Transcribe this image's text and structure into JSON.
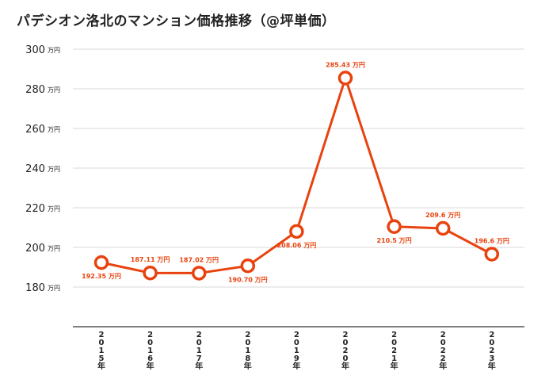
{
  "chart_data": {
    "type": "line",
    "title": "パデシオン洛北のマンション価格推移（@坪単価）",
    "y_unit": "万円",
    "ylim": [
      160,
      300
    ],
    "yticks": [
      180,
      200,
      220,
      240,
      260,
      280,
      300
    ],
    "categories": [
      "2015年",
      "2016年",
      "2017年",
      "2018年",
      "2019年",
      "2020年",
      "2021年",
      "2022年",
      "2023年"
    ],
    "values": [
      192.35,
      187.11,
      187.02,
      190.7,
      208.06,
      285.43,
      210.5,
      209.6,
      196.6
    ],
    "data_labels": [
      "192.35 万円",
      "187.11 万円",
      "187.02 万円",
      "190.70 万円",
      "208.06 万円",
      "285.43 万円",
      "210.5 万円",
      "209.6 万円",
      "196.6 万円"
    ],
    "label_positions": [
      "below",
      "above",
      "above",
      "below",
      "below",
      "above",
      "below",
      "above",
      "above"
    ],
    "line_color": "#e8430e",
    "grid": true
  }
}
